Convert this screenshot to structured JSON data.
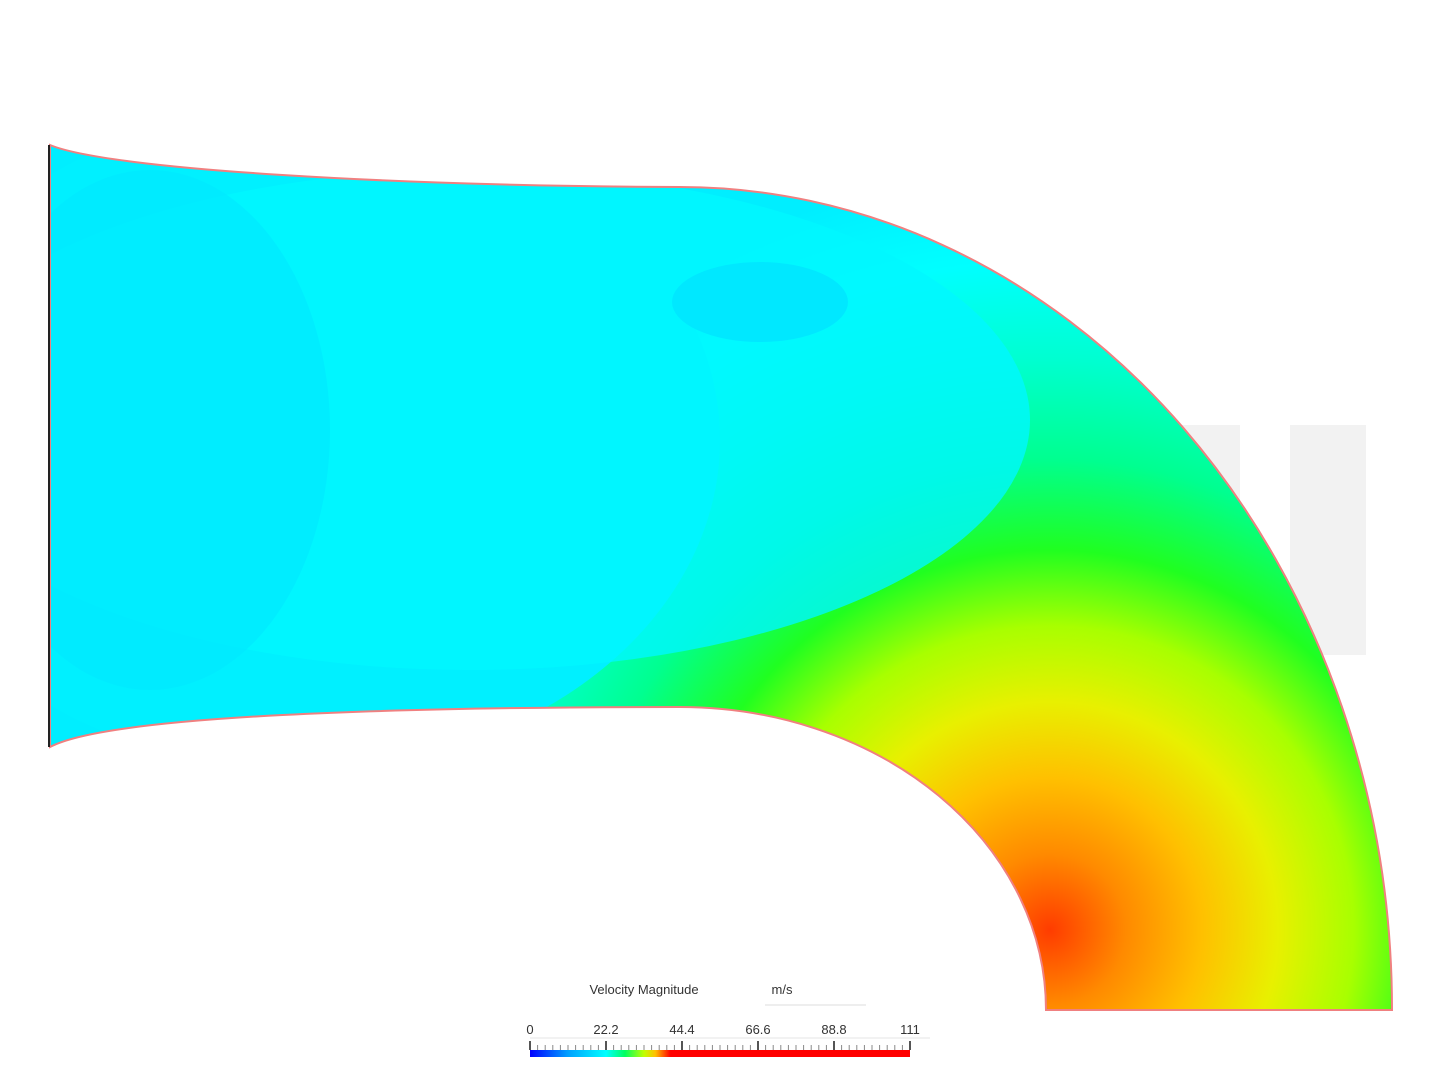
{
  "legend": {
    "title": "Velocity Magnitude",
    "unit": "m/s",
    "ticks": [
      0,
      22.2,
      44.4,
      66.6,
      88.8,
      111
    ]
  }
}
